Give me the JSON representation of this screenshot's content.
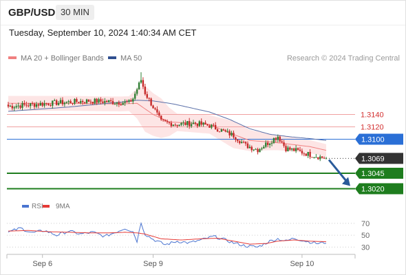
{
  "header": {
    "symbol": "GBP/USD",
    "timeframe": "30 MIN",
    "datetime": "Tuesday, September 10, 2024 1:40:34 AM CET"
  },
  "legend": {
    "items": [
      {
        "label": "MA 20 + Bollinger Bands",
        "color": "#f08080"
      },
      {
        "label": "MA 50",
        "color": "#2f4f8f"
      }
    ],
    "credit": "Research © 2024 Trading Central"
  },
  "colors": {
    "up_candle": "#2e7d32",
    "down_candle": "#c62828",
    "bollinger_band": "#fde0e0",
    "ma20": "#f08080",
    "ma50": "#5a6fa8",
    "pivot_line": "#2a6fd6",
    "resistance_line": "#f0a0a0",
    "support_line": "#1e7d1e",
    "last_price_tag": "#333333",
    "rsi_line": "#4a74d0",
    "rsi_ma_line": "#e53935",
    "arrow": "#2a5b9a"
  },
  "chart_data": [
    {
      "type": "candlestick",
      "title": "",
      "x_ticks": [
        "Sep 6",
        "Sep 9",
        "Sep 10"
      ],
      "ylim": [
        1.3005,
        1.3205
      ],
      "last_price": 1.3069,
      "levels": [
        {
          "label": "1.3140",
          "value": 1.314,
          "role": "resistance"
        },
        {
          "label": "1.3120",
          "value": 1.312,
          "role": "resistance"
        },
        {
          "label": "1.3100",
          "value": 1.31,
          "role": "pivot"
        },
        {
          "label": "1.3069",
          "value": 1.3069,
          "role": "last"
        },
        {
          "label": "1.3045",
          "value": 1.3045,
          "role": "support"
        },
        {
          "label": "1.3020",
          "value": 1.302,
          "role": "support"
        }
      ],
      "anchors": {
        "close": [
          [
            0,
            1.3153
          ],
          [
            20,
            1.3158
          ],
          [
            40,
            1.3162
          ],
          [
            60,
            1.3159
          ],
          [
            62,
            1.3166
          ],
          [
            66,
            1.3196
          ],
          [
            68,
            1.3175
          ],
          [
            72,
            1.3152
          ],
          [
            76,
            1.3128
          ],
          [
            84,
            1.3124
          ],
          [
            92,
            1.3126
          ],
          [
            100,
            1.3122
          ],
          [
            112,
            1.3106
          ],
          [
            118,
            1.309
          ],
          [
            124,
            1.3083
          ],
          [
            134,
            1.3105
          ],
          [
            138,
            1.3085
          ],
          [
            144,
            1.3081
          ],
          [
            150,
            1.3075
          ],
          [
            158,
            1.3069
          ]
        ],
        "ma20": [
          [
            0,
            1.3158
          ],
          [
            30,
            1.3158
          ],
          [
            56,
            1.3157
          ],
          [
            64,
            1.3158
          ],
          [
            72,
            1.314
          ],
          [
            80,
            1.3128
          ],
          [
            90,
            1.3126
          ],
          [
            100,
            1.3124
          ],
          [
            110,
            1.311
          ],
          [
            120,
            1.3098
          ],
          [
            132,
            1.3095
          ],
          [
            140,
            1.3092
          ],
          [
            150,
            1.3088
          ],
          [
            158,
            1.3082
          ]
        ],
        "ma50": [
          [
            0,
            1.3145
          ],
          [
            30,
            1.3152
          ],
          [
            56,
            1.316
          ],
          [
            64,
            1.3163
          ],
          [
            72,
            1.3162
          ],
          [
            82,
            1.3157
          ],
          [
            100,
            1.3144
          ],
          [
            110,
            1.3132
          ],
          [
            120,
            1.3117
          ],
          [
            130,
            1.3108
          ],
          [
            140,
            1.3104
          ],
          [
            150,
            1.3101
          ],
          [
            158,
            1.3098
          ]
        ],
        "band_half_width": [
          [
            0,
            0.0012
          ],
          [
            60,
            0.0012
          ],
          [
            68,
            0.0037
          ],
          [
            76,
            0.0032
          ],
          [
            84,
            0.0014
          ],
          [
            100,
            0.0015
          ],
          [
            112,
            0.0022
          ],
          [
            122,
            0.0016
          ],
          [
            134,
            0.0012
          ],
          [
            158,
            0.001
          ]
        ]
      },
      "forecast": {
        "from": 1.3069,
        "to": 1.302
      }
    },
    {
      "type": "line",
      "series": [
        {
          "name": "RSI"
        },
        {
          "name": "9MA"
        }
      ],
      "y_ticks": [
        70,
        50,
        30
      ],
      "ylim": [
        20,
        85
      ],
      "anchors": {
        "rsi": [
          [
            0,
            55
          ],
          [
            6,
            62
          ],
          [
            12,
            54
          ],
          [
            18,
            58
          ],
          [
            24,
            50
          ],
          [
            30,
            57
          ],
          [
            36,
            52
          ],
          [
            42,
            55
          ],
          [
            48,
            48
          ],
          [
            54,
            56
          ],
          [
            58,
            62
          ],
          [
            62,
            56
          ],
          [
            64,
            40
          ],
          [
            66,
            72
          ],
          [
            68,
            52
          ],
          [
            72,
            43
          ],
          [
            78,
            34
          ],
          [
            84,
            40
          ],
          [
            90,
            37
          ],
          [
            96,
            42
          ],
          [
            102,
            48
          ],
          [
            108,
            42
          ],
          [
            112,
            37
          ],
          [
            118,
            32
          ],
          [
            124,
            30
          ],
          [
            130,
            40
          ],
          [
            134,
            44
          ],
          [
            138,
            40
          ],
          [
            142,
            45
          ],
          [
            148,
            40
          ],
          [
            154,
            36
          ],
          [
            158,
            38
          ]
        ],
        "rsi_ma": [
          [
            0,
            57
          ],
          [
            10,
            58
          ],
          [
            20,
            56
          ],
          [
            30,
            55
          ],
          [
            40,
            54
          ],
          [
            50,
            54
          ],
          [
            58,
            55
          ],
          [
            64,
            54
          ],
          [
            68,
            52
          ],
          [
            76,
            44
          ],
          [
            86,
            42
          ],
          [
            96,
            44
          ],
          [
            104,
            45
          ],
          [
            112,
            40
          ],
          [
            120,
            35
          ],
          [
            128,
            36
          ],
          [
            134,
            40
          ],
          [
            142,
            42
          ],
          [
            150,
            40
          ],
          [
            158,
            39
          ]
        ]
      }
    }
  ]
}
